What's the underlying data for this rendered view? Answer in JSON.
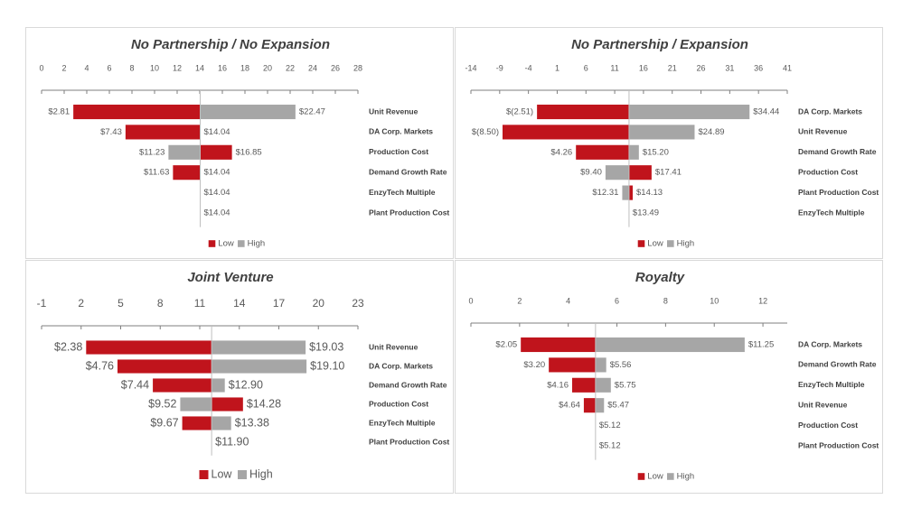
{
  "chart_data": [
    {
      "type": "tornado",
      "title": "No Partnership / No Expansion",
      "categories": [
        "Unit Revenue",
        "DA Corp. Markets",
        "Production Cost",
        "Demand Growth Rate",
        "EnzyTech Multiple",
        "Plant Production Cost"
      ],
      "base": 14.04,
      "series": [
        {
          "name": "Low",
          "color": "#c0141c",
          "values": [
            2.81,
            7.43,
            16.85,
            11.63,
            14.04,
            14.04
          ],
          "value_labels": [
            "$2.81",
            "$7.43",
            "$16.85",
            "$11.63",
            null,
            null
          ]
        },
        {
          "name": "High",
          "color": "#a6a6a6",
          "values": [
            22.47,
            14.04,
            11.23,
            14.04,
            14.04,
            14.04
          ],
          "value_labels": [
            "$22.47",
            "$14.04",
            "$11.23",
            "$14.04",
            "$14.04",
            "$14.04"
          ]
        }
      ],
      "xlim": [
        0,
        28
      ],
      "xticks": [
        0,
        2,
        4,
        6,
        8,
        10,
        12,
        14,
        16,
        18,
        20,
        22,
        24,
        26,
        28
      ],
      "legend": "bottom"
    },
    {
      "type": "tornado",
      "title": "No Partnership / Expansion",
      "categories": [
        "DA Corp. Markets",
        "Unit Revenue",
        "Demand Growth Rate",
        "Production Cost",
        "Plant Production Cost",
        "EnzyTech Multiple"
      ],
      "base": 13.49,
      "series": [
        {
          "name": "Low",
          "color": "#c0141c",
          "values": [
            -2.51,
            -8.5,
            4.26,
            17.41,
            14.13,
            13.49
          ],
          "value_labels": [
            "$(2.51)",
            "$(8.50)",
            "$4.26",
            "$17.41",
            "$14.13",
            null
          ]
        },
        {
          "name": "High",
          "color": "#a6a6a6",
          "values": [
            34.44,
            24.89,
            15.2,
            9.4,
            12.31,
            13.49
          ],
          "value_labels": [
            "$34.44",
            "$24.89",
            "$15.20",
            "$9.40",
            "$12.31",
            "$13.49"
          ]
        }
      ],
      "xlim": [
        -14,
        41
      ],
      "xticks": [
        -14,
        -9,
        -4,
        1,
        6,
        11,
        16,
        21,
        26,
        31,
        36,
        41
      ],
      "legend": "bottom"
    },
    {
      "type": "tornado",
      "title": "Joint Venture",
      "categories": [
        "Unit Revenue",
        "DA Corp. Markets",
        "Demand Growth Rate",
        "Production Cost",
        "EnzyTech Multiple",
        "Plant Production Cost"
      ],
      "base": 11.9,
      "series": [
        {
          "name": "Low",
          "color": "#c0141c",
          "values": [
            2.38,
            4.76,
            7.44,
            14.28,
            9.67,
            11.9
          ],
          "value_labels": [
            "$2.38",
            "$4.76",
            "$7.44",
            "$14.28",
            "$9.67",
            null
          ]
        },
        {
          "name": "High",
          "color": "#a6a6a6",
          "values": [
            19.03,
            19.1,
            12.9,
            9.52,
            13.38,
            11.9
          ],
          "value_labels": [
            "$19.03",
            "$19.10",
            "$12.90",
            "$9.52",
            "$13.38",
            "$11.90"
          ]
        }
      ],
      "xlim": [
        -1,
        23
      ],
      "xticks": [
        -1,
        2,
        5,
        8,
        11,
        14,
        17,
        20,
        23
      ],
      "legend": "bottom"
    },
    {
      "type": "tornado",
      "title": "Royalty",
      "categories": [
        "DA Corp. Markets",
        "Demand Growth Rate",
        "EnzyTech Multiple",
        "Unit Revenue",
        "Production Cost",
        "Plant Production Cost"
      ],
      "base": 5.12,
      "series": [
        {
          "name": "Low",
          "color": "#c0141c",
          "values": [
            2.05,
            3.2,
            4.16,
            4.64,
            5.12,
            5.12
          ],
          "value_labels": [
            "$2.05",
            "$3.20",
            "$4.16",
            "$4.64",
            null,
            null
          ]
        },
        {
          "name": "High",
          "color": "#a6a6a6",
          "values": [
            11.25,
            5.56,
            5.75,
            5.47,
            5.12,
            5.12
          ],
          "value_labels": [
            "$11.25",
            "$5.56",
            "$5.75",
            "$5.47",
            "$5.12",
            "$5.12"
          ]
        }
      ],
      "xlim": [
        0,
        13
      ],
      "xticks": [
        0,
        2,
        4,
        6,
        8,
        10,
        12
      ],
      "legend": "bottom"
    }
  ]
}
